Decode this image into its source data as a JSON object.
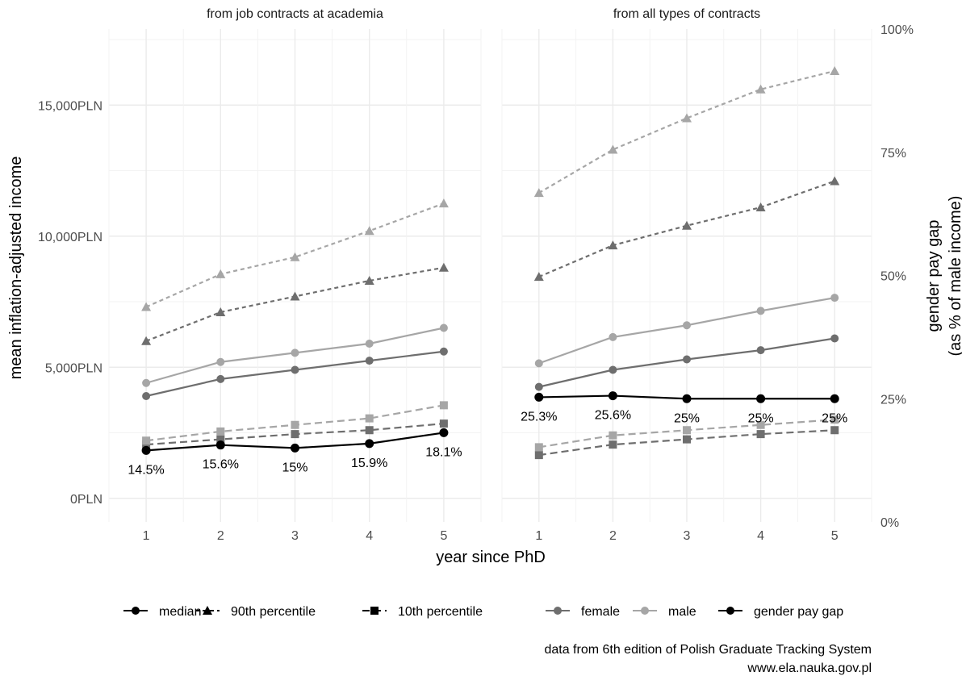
{
  "chart_data": {
    "type": "line",
    "xlabel": "year since PhD",
    "ylabel": "mean inflation-adjusted income",
    "ylabel_right": [
      "gender pay gap",
      "(as % of male income)"
    ],
    "x": [
      1,
      2,
      3,
      4,
      5
    ],
    "x_tick_labels": [
      "1",
      "2",
      "3",
      "4",
      "5"
    ],
    "ylim": [
      -900,
      17900
    ],
    "yticks": [
      0,
      5000,
      10000,
      15000
    ],
    "ytick_labels": [
      "0PLN",
      "5,000PLN",
      "10,000PLN",
      "15,000PLN"
    ],
    "y2lim": [
      0,
      100
    ],
    "y2ticks": [
      0,
      25,
      50,
      75,
      100
    ],
    "y2tick_labels": [
      "0%",
      "25%",
      "50%",
      "75%",
      "100%"
    ],
    "grid": true,
    "legend_position": "bottom",
    "legend_stat": [
      {
        "label": "median",
        "shape": "circle",
        "dash": "solid"
      },
      {
        "label": "90th percentile",
        "shape": "triangle",
        "dash": "dotted"
      },
      {
        "label": "10th percentile",
        "shape": "square",
        "dash": "dashed"
      }
    ],
    "legend_gender": [
      {
        "label": "female",
        "color": "#6e6e6e"
      },
      {
        "label": "male",
        "color": "#a6a6a6"
      },
      {
        "label": "gender pay gap",
        "color": "#000000"
      }
    ],
    "colors": {
      "female": "#6e6e6e",
      "male": "#a6a6a6",
      "gap": "#000000",
      "grid": "#ebebeb"
    },
    "caption": [
      "data from 6th edition of Polish Graduate Tracking System",
      "www.ela.nauka.gov.pl"
    ],
    "panels": [
      {
        "title": "from job contracts at academia",
        "series": [
          {
            "name": "90th percentile female",
            "group": "female",
            "stat": "p90",
            "values": [
              6000,
              7100,
              7700,
              8300,
              8800
            ]
          },
          {
            "name": "90th percentile male",
            "group": "male",
            "stat": "p90",
            "values": [
              7300,
              8550,
              9200,
              10200,
              11250
            ]
          },
          {
            "name": "median female",
            "group": "female",
            "stat": "median",
            "values": [
              3900,
              4550,
              4900,
              5250,
              5600
            ]
          },
          {
            "name": "median male",
            "group": "male",
            "stat": "median",
            "values": [
              4400,
              5200,
              5550,
              5900,
              6500
            ]
          },
          {
            "name": "10th percentile female",
            "group": "female",
            "stat": "p10",
            "values": [
              2050,
              2250,
              2450,
              2600,
              2850
            ]
          },
          {
            "name": "10th percentile male",
            "group": "male",
            "stat": "p10",
            "values": [
              2200,
              2550,
              2800,
              3050,
              3550
            ]
          }
        ],
        "gap": {
          "values": [
            14.5,
            15.6,
            15,
            15.9,
            18.1
          ],
          "labels": [
            "14.5%",
            "15.6%",
            "15%",
            "15.9%",
            "18.1%"
          ]
        }
      },
      {
        "title": "from all types of contracts",
        "series": [
          {
            "name": "90th percentile female",
            "group": "female",
            "stat": "p90",
            "values": [
              8450,
              9650,
              10400,
              11100,
              12100
            ]
          },
          {
            "name": "90th percentile male",
            "group": "male",
            "stat": "p90",
            "values": [
              11650,
              13300,
              14500,
              15600,
              16300
            ]
          },
          {
            "name": "median female",
            "group": "female",
            "stat": "median",
            "values": [
              4250,
              4900,
              5300,
              5650,
              6100
            ]
          },
          {
            "name": "median male",
            "group": "male",
            "stat": "median",
            "values": [
              5150,
              6150,
              6600,
              7150,
              7650
            ]
          },
          {
            "name": "10th percentile female",
            "group": "female",
            "stat": "p10",
            "values": [
              1650,
              2050,
              2250,
              2450,
              2600
            ]
          },
          {
            "name": "10th percentile male",
            "group": "male",
            "stat": "p10",
            "values": [
              1950,
              2400,
              2600,
              2800,
              3000
            ]
          }
        ],
        "gap": {
          "values": [
            25.3,
            25.6,
            25,
            25,
            25
          ],
          "labels": [
            "25.3%",
            "25.6%",
            "25%",
            "25%",
            "25%"
          ]
        }
      }
    ]
  }
}
